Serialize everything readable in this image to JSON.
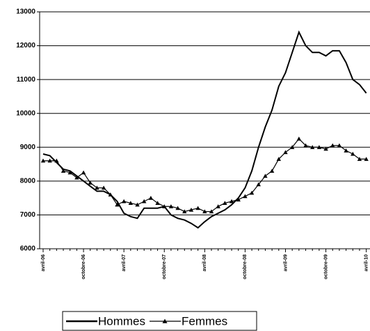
{
  "chart_data": {
    "type": "line",
    "categories": [
      "avril-06",
      null,
      null,
      null,
      null,
      null,
      "octobre-06",
      null,
      null,
      null,
      null,
      null,
      "avril-07",
      null,
      null,
      null,
      null,
      null,
      "octobre-07",
      null,
      null,
      null,
      null,
      null,
      "avril-08",
      null,
      null,
      null,
      null,
      null,
      "octobre-08",
      null,
      null,
      null,
      null,
      null,
      "avril-09",
      null,
      null,
      null,
      null,
      null,
      "octobre-09",
      null,
      null,
      null,
      null,
      null,
      "avril-10"
    ],
    "series": [
      {
        "name": "Hommes",
        "color": "#000000",
        "marker": "none",
        "values": [
          8800,
          8750,
          8550,
          8350,
          8300,
          8150,
          8000,
          7850,
          7700,
          7700,
          7600,
          7400,
          7050,
          6950,
          6900,
          7200,
          7200,
          7200,
          7250,
          7000,
          6900,
          6850,
          6750,
          6620,
          6800,
          6950,
          7050,
          7150,
          7300,
          7500,
          7800,
          8300,
          9000,
          9600,
          10100,
          10800,
          11200,
          11800,
          12400,
          12000,
          11800,
          11800,
          11700,
          11850,
          11850,
          11500,
          11000,
          10850,
          10600
        ]
      },
      {
        "name": "Femmes",
        "color": "#000000",
        "marker": "triangle",
        "values": [
          8600,
          8600,
          8600,
          8300,
          8250,
          8100,
          8250,
          7950,
          7800,
          7800,
          7600,
          7300,
          7400,
          7350,
          7300,
          7400,
          7500,
          7350,
          7250,
          7250,
          7200,
          7100,
          7150,
          7200,
          7100,
          7100,
          7250,
          7350,
          7400,
          7450,
          7550,
          7650,
          7900,
          8150,
          8300,
          8650,
          8850,
          9000,
          9250,
          9050,
          9000,
          9000,
          8950,
          9050,
          9050,
          8900,
          8800,
          8650,
          8650
        ]
      }
    ],
    "ylim": [
      6000,
      13000
    ],
    "yticks": [
      6000,
      7000,
      8000,
      9000,
      10000,
      11000,
      12000,
      13000
    ],
    "grid": true
  }
}
